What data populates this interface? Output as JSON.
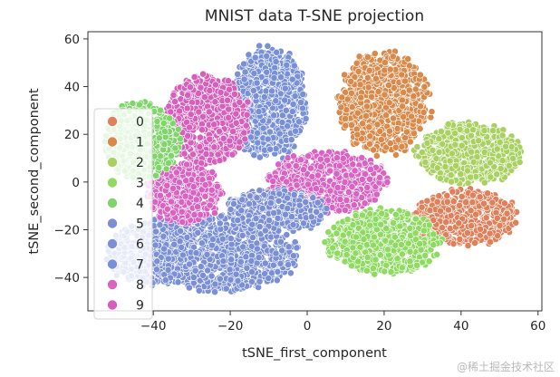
{
  "chart_data": {
    "type": "scatter",
    "title": "MNIST data T-SNE projection",
    "xlabel": "tSNE_first_component",
    "ylabel": "tSNE_second_component",
    "xlim": [
      -57,
      61
    ],
    "ylim": [
      -54,
      63
    ],
    "xticks": [
      -40,
      -20,
      0,
      20,
      40,
      60
    ],
    "yticks": [
      -40,
      -20,
      0,
      20,
      40,
      60
    ],
    "legend": {
      "position": "left",
      "entries": [
        {
          "label": "0",
          "color": "#e0805b"
        },
        {
          "label": "1",
          "color": "#d98a4a"
        },
        {
          "label": "2",
          "color": "#a8d161"
        },
        {
          "label": "3",
          "color": "#8fdb62"
        },
        {
          "label": "4",
          "color": "#7fd46a"
        },
        {
          "label": "5",
          "color": "#7b8fd6"
        },
        {
          "label": "6",
          "color": "#7a8fd6"
        },
        {
          "label": "7",
          "color": "#7890d8"
        },
        {
          "label": "8",
          "color": "#d962c2"
        },
        {
          "label": "9",
          "color": "#d65fbb"
        }
      ]
    },
    "clusters": [
      {
        "label": "6",
        "cx": -22,
        "cy": -30,
        "rx": 20,
        "ry": 16
      },
      {
        "label": "5",
        "cx": -40,
        "cy": -30,
        "rx": 12,
        "ry": 14
      },
      {
        "label": "7",
        "cx": -10,
        "cy": 33,
        "rx": 10,
        "ry": 24
      },
      {
        "label": "9",
        "cx": -26,
        "cy": 26,
        "rx": 11,
        "ry": 19
      },
      {
        "label": "8",
        "cx": -32,
        "cy": -5,
        "rx": 10,
        "ry": 13
      },
      {
        "label": "4",
        "cx": -43,
        "cy": 17,
        "rx": 10,
        "ry": 17
      },
      {
        "label": "8",
        "cx": 5,
        "cy": 0,
        "rx": 16,
        "ry": 13
      },
      {
        "label": "5",
        "cx": -8,
        "cy": -12,
        "rx": 14,
        "ry": 9
      },
      {
        "label": "1",
        "cx": 20,
        "cy": 33,
        "rx": 12,
        "ry": 22
      },
      {
        "label": "2",
        "cx": 42,
        "cy": 12,
        "rx": 14,
        "ry": 13
      },
      {
        "label": "0",
        "cx": 41,
        "cy": -15,
        "rx": 14,
        "ry": 12
      },
      {
        "label": "3",
        "cx": 20,
        "cy": -25,
        "rx": 15,
        "ry": 14
      }
    ]
  },
  "watermark": "@稀土掘金技术社区"
}
